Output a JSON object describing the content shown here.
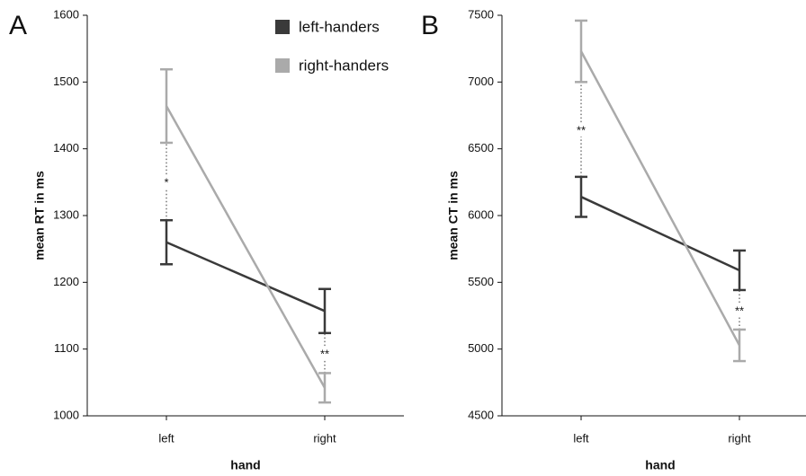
{
  "chart_data": [
    {
      "type": "line",
      "panel_label": "A",
      "y_label": "mean RT in ms",
      "x_label": "hand",
      "categories": [
        "left",
        "right"
      ],
      "series": [
        {
          "name": "left-handers",
          "color": "#3a3a3a",
          "values": [
            1260,
            1157
          ],
          "errors": [
            33,
            33
          ]
        },
        {
          "name": "right-handers",
          "color": "#aaaaaa",
          "values": [
            1464,
            1042
          ],
          "errors": [
            55,
            22
          ]
        }
      ],
      "annotations": [
        "*",
        "**"
      ],
      "ylim": [
        1000,
        1600
      ],
      "yticks": [
        1000,
        1100,
        1200,
        1300,
        1400,
        1500,
        1600
      ],
      "legend": "top"
    },
    {
      "type": "line",
      "panel_label": "B",
      "y_label": "mean CT in ms",
      "x_label": "hand",
      "categories": [
        "left",
        "right"
      ],
      "series": [
        {
          "name": "left-handers",
          "color": "#3a3a3a",
          "values": [
            6140,
            5590
          ],
          "errors": [
            150,
            148
          ]
        },
        {
          "name": "right-handers",
          "color": "#aaaaaa",
          "values": [
            7230,
            5028
          ],
          "errors": [
            230,
            118
          ]
        }
      ],
      "annotations": [
        "**",
        "**"
      ],
      "ylim": [
        4500,
        7500
      ],
      "yticks": [
        4500,
        5000,
        5500,
        6000,
        6500,
        7000,
        7500
      ]
    }
  ]
}
